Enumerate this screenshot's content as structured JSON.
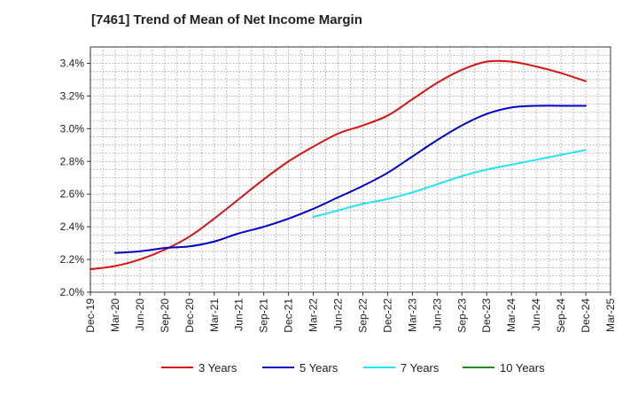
{
  "chart_data": {
    "type": "line",
    "title": "[7461]  Trend of Mean of Net Income Margin",
    "xlabel": "",
    "ylabel": "",
    "categories": [
      "Dec-19",
      "Mar-20",
      "Jun-20",
      "Sep-20",
      "Dec-20",
      "Mar-21",
      "Jun-21",
      "Sep-21",
      "Dec-21",
      "Mar-22",
      "Jun-22",
      "Sep-22",
      "Dec-22",
      "Mar-23",
      "Jun-23",
      "Sep-23",
      "Dec-23",
      "Mar-24",
      "Jun-24",
      "Sep-24",
      "Dec-24",
      "Mar-25"
    ],
    "ylim": [
      2.0,
      3.5
    ],
    "yticks": [
      2.0,
      2.2,
      2.4,
      2.6,
      2.8,
      3.0,
      3.2,
      3.4
    ],
    "ytick_labels": [
      "2.0%",
      "2.2%",
      "2.4%",
      "2.6%",
      "2.8%",
      "3.0%",
      "3.2%",
      "3.4%"
    ],
    "grid": true,
    "legend_position": "bottom",
    "series": [
      {
        "name": "3 Years",
        "color": "#dd1111",
        "values": [
          2.14,
          2.16,
          2.2,
          2.26,
          2.34,
          2.45,
          2.57,
          2.69,
          2.8,
          2.89,
          2.97,
          3.02,
          3.08,
          3.18,
          3.28,
          3.36,
          3.41,
          3.41,
          3.38,
          3.34,
          3.29,
          null
        ]
      },
      {
        "name": "5 Years",
        "color": "#0000cc",
        "values": [
          null,
          2.24,
          2.25,
          2.27,
          2.28,
          2.31,
          2.36,
          2.4,
          2.45,
          2.51,
          2.58,
          2.65,
          2.73,
          2.83,
          2.93,
          3.02,
          3.09,
          3.13,
          3.14,
          3.14,
          3.14,
          null
        ]
      },
      {
        "name": "7 Years",
        "color": "#22e5f0",
        "values": [
          null,
          null,
          null,
          null,
          null,
          null,
          null,
          null,
          null,
          2.46,
          2.5,
          2.54,
          2.57,
          2.61,
          2.66,
          2.71,
          2.75,
          2.78,
          2.81,
          2.84,
          2.87,
          null
        ]
      },
      {
        "name": "10 Years",
        "color": "#228b22",
        "values": [
          null,
          null,
          null,
          null,
          null,
          null,
          null,
          null,
          null,
          null,
          null,
          null,
          null,
          null,
          null,
          null,
          null,
          null,
          null,
          null,
          null,
          null
        ]
      }
    ]
  }
}
